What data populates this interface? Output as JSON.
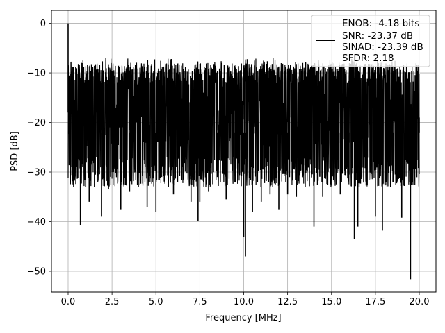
{
  "chart_data": {
    "type": "line",
    "title": "",
    "xlabel": "Frequency [MHz]",
    "ylabel": "PSD [dB]",
    "xlim": [
      -0.95,
      20.95
    ],
    "ylim": [
      -54.2,
      2.6
    ],
    "x_ticks": [
      0.0,
      2.5,
      5.0,
      7.5,
      10.0,
      12.5,
      15.0,
      17.5,
      20.0
    ],
    "x_tick_labels": [
      "0.0",
      "2.5",
      "5.0",
      "7.5",
      "10.0",
      "12.5",
      "15.0",
      "17.5",
      "20.0"
    ],
    "y_ticks": [
      0,
      -10,
      -20,
      -30,
      -40,
      -50
    ],
    "y_tick_labels": [
      "0",
      "−10",
      "−20",
      "−30",
      "−40",
      "−50"
    ],
    "grid": true,
    "legend": {
      "placement": "top-right",
      "entries": [
        {
          "label": "ENOB: -4.18 bits",
          "color": "#000000",
          "marker": "line"
        },
        {
          "label": "SNR: -23.37 dB",
          "color": "",
          "marker": "none"
        },
        {
          "label": "SINAD: -23.39 dB",
          "color": "",
          "marker": "none"
        },
        {
          "label": "SFDR: 2.18",
          "color": "",
          "marker": "none"
        }
      ]
    },
    "series": [
      {
        "color": "#000000",
        "x": [
          0.0,
          0.05,
          0.12,
          0.2,
          0.3,
          0.5,
          0.7,
          1.0,
          1.2,
          1.5,
          1.9,
          2.3,
          2.5,
          3.0,
          3.5,
          4.0,
          4.5,
          5.0,
          5.5,
          6.0,
          6.5,
          7.0,
          7.4,
          7.5,
          8.0,
          8.5,
          9.0,
          9.5,
          10.0,
          10.1,
          10.5,
          11.0,
          11.5,
          12.0,
          12.5,
          13.0,
          13.5,
          14.0,
          14.5,
          15.0,
          15.5,
          16.0,
          16.3,
          16.5,
          17.0,
          17.5,
          17.9,
          18.5,
          19.0,
          19.5,
          20.0
        ],
        "y": [
          0,
          -14,
          -25,
          -16,
          -20,
          -29,
          -40.7,
          -33,
          -36,
          -33,
          -39,
          -33.5,
          -30,
          -37.5,
          -34,
          -33,
          -37,
          -38,
          -31.5,
          -34.5,
          -29,
          -36,
          -39.8,
          -36,
          -34,
          -31,
          -35.5,
          -32,
          -43,
          -47,
          -38,
          -36,
          -34.5,
          -37.5,
          -34.5,
          -35,
          -33,
          -41,
          -35,
          -31,
          -34.5,
          -30.5,
          -43.5,
          -41,
          -32.5,
          -39,
          -41.8,
          -32,
          -39.2,
          -51.6,
          -19
        ]
      }
    ]
  }
}
